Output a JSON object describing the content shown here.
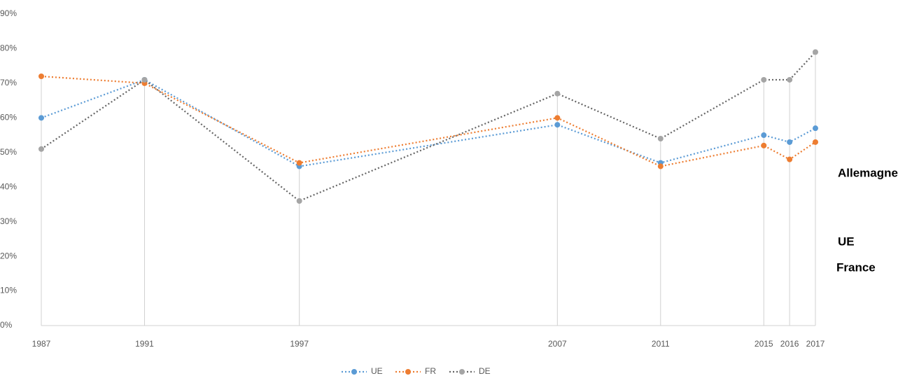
{
  "chart_data": {
    "type": "line",
    "x": [
      1987,
      1991,
      1997,
      2007,
      2011,
      2015,
      2016,
      2017
    ],
    "xlim": [
      1987,
      2017
    ],
    "xticks": [
      1987,
      1991,
      1997,
      2007,
      2011,
      2015,
      2016,
      2017
    ],
    "ylim": [
      0,
      90
    ],
    "yticks": [
      {
        "value": 0,
        "label": "0%"
      },
      {
        "value": 10,
        "label": "10%"
      },
      {
        "value": 20,
        "label": "20%"
      },
      {
        "value": 30,
        "label": "30%"
      },
      {
        "value": 40,
        "label": "40%"
      },
      {
        "value": 50,
        "label": "50%"
      },
      {
        "value": 60,
        "label": "60%"
      },
      {
        "value": 70,
        "label": "70%"
      },
      {
        "value": 80,
        "label": "80%"
      },
      {
        "value": 90,
        "label": "90%"
      }
    ],
    "series": [
      {
        "name": "UE",
        "color": "#5b9bd5",
        "values": [
          60,
          71,
          46,
          58,
          47,
          55,
          53,
          57
        ]
      },
      {
        "name": "FR",
        "color": "#ed7d31",
        "values": [
          72,
          70,
          47,
          60,
          46,
          52,
          48,
          53
        ]
      },
      {
        "name": "DE",
        "color": "#a5a5a5",
        "values": [
          51,
          71,
          36,
          67,
          54,
          71,
          71,
          79
        ]
      }
    ],
    "annotations": [
      "Allemagne",
      "UE",
      "France"
    ],
    "legend": "bottom"
  }
}
